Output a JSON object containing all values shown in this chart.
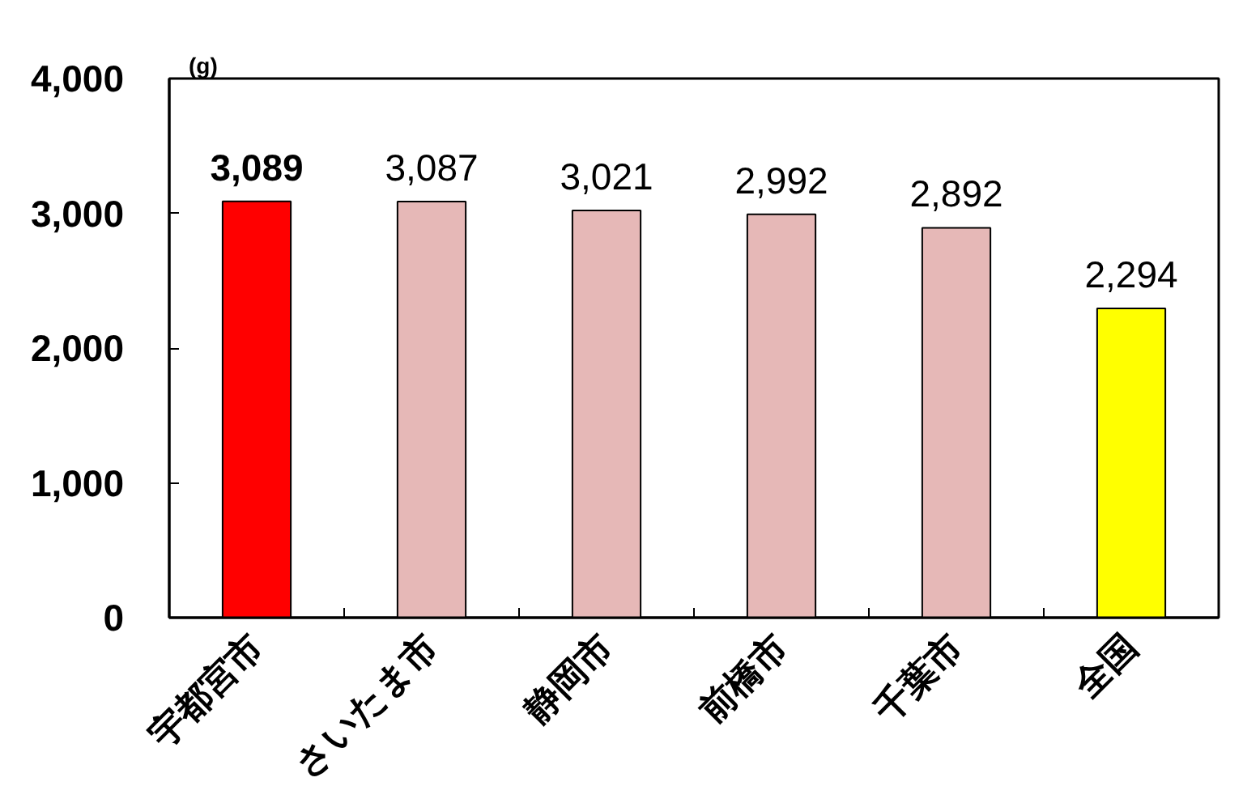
{
  "chart_data": {
    "type": "bar",
    "ylabel": "(g)",
    "categories": [
      "宇都宮市",
      "さいたま市",
      "静岡市",
      "前橋市",
      "千葉市",
      "全国"
    ],
    "values": [
      3089,
      3087,
      3021,
      2992,
      2892,
      2294
    ],
    "value_labels": [
      "3,089",
      "3,087",
      "3,021",
      "2,992",
      "2,892",
      "2,294"
    ],
    "colors": [
      "#ff0000",
      "#e6b8b7",
      "#e6b8b7",
      "#e6b8b7",
      "#e6b8b7",
      "#ffff00"
    ],
    "ylim": [
      0,
      4000
    ],
    "yticks": [
      0,
      {
        "value": 1000,
        "label": "1,000"
      },
      {
        "value": 2000,
        "label": "2,000"
      },
      {
        "value": 3000,
        "label": "3,000"
      },
      {
        "value": 4000,
        "label": "4,000"
      }
    ]
  }
}
